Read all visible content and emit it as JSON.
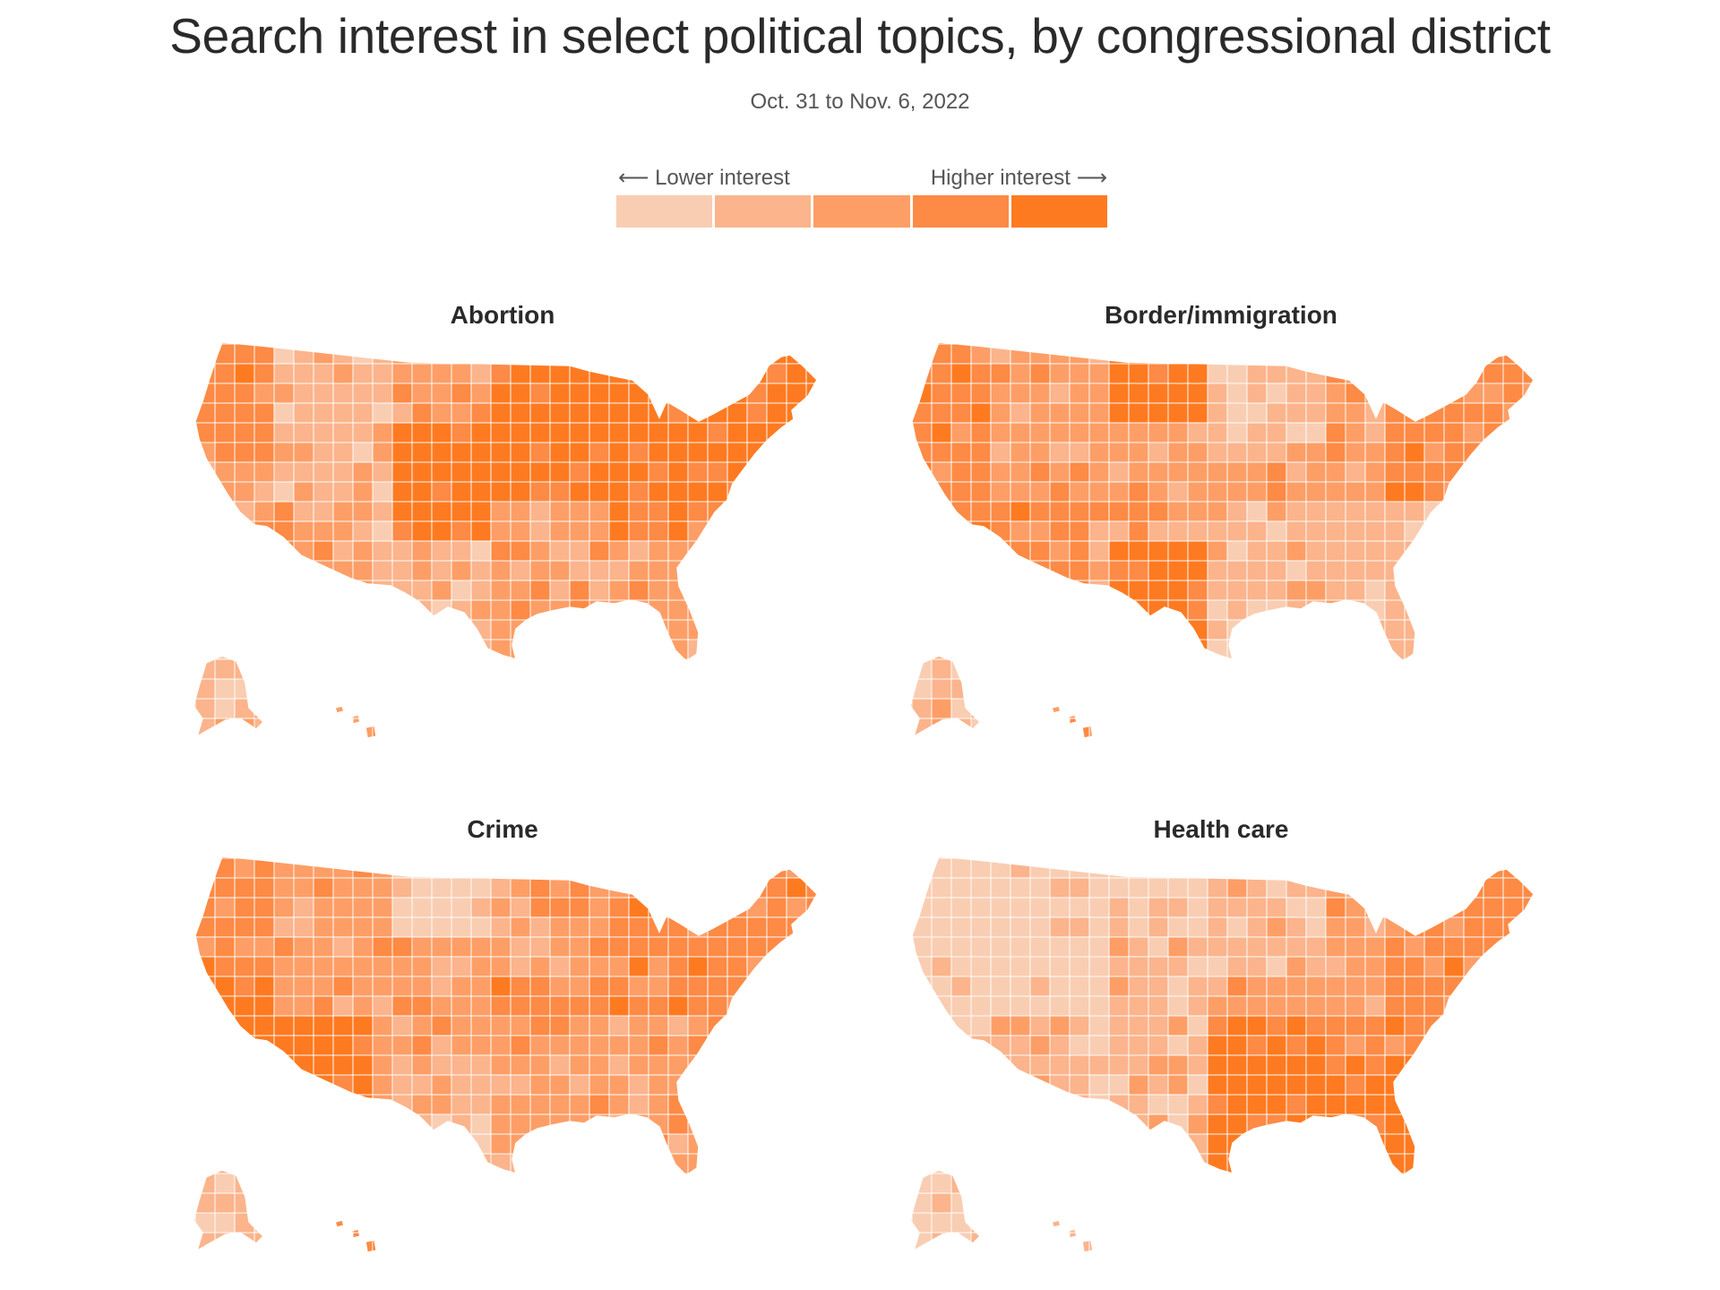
{
  "title": "Search interest in select political topics, by congressional district",
  "subtitle": "Oct. 31 to Nov. 6, 2022",
  "legend": {
    "low_label": "⟵ Lower interest",
    "high_label": "Higher interest ⟶",
    "colors": [
      "#f9cdb2",
      "#fbb48c",
      "#fd9e66",
      "#fd8a45",
      "#fe7a21"
    ]
  },
  "chart_data": {
    "type": "choropleth",
    "geography": "U.S. congressional districts",
    "scale_levels": 5,
    "panels": [
      {
        "title": "Abortion",
        "regional_interest_levels": {
          "pacific_nw": 3,
          "california": 2,
          "mountain_west": 1,
          "southwest": 2,
          "northern_plains": 2,
          "central_plains": 4,
          "upper_midwest": 4,
          "great_lakes": 4,
          "appalachia": 3,
          "northeast": 4,
          "southeast": 2,
          "texas": 1,
          "alaska": 1,
          "hawaii": 2
        }
      },
      {
        "title": "Border/immigration",
        "regional_interest_levels": {
          "pacific_nw": 3,
          "california": 3,
          "mountain_west": 2,
          "southwest": 3,
          "northern_plains": 4,
          "central_plains": 2,
          "upper_midwest": 1,
          "great_lakes": 2,
          "appalachia": 1,
          "northeast": 3,
          "southeast": 1,
          "texas": 4,
          "alaska": 1,
          "hawaii": 2
        }
      },
      {
        "title": "Crime",
        "regional_interest_levels": {
          "pacific_nw": 3,
          "california": 4,
          "mountain_west": 2,
          "southwest": 4,
          "northern_plains": 0,
          "central_plains": 2,
          "upper_midwest": 2,
          "great_lakes": 3,
          "appalachia": 2,
          "northeast": 3,
          "southeast": 2,
          "texas": 1,
          "alaska": 1,
          "hawaii": 3
        }
      },
      {
        "title": "Health care",
        "regional_interest_levels": {
          "pacific_nw": 0,
          "california": 0,
          "mountain_west": 0,
          "southwest": 1,
          "northern_plains": 0,
          "central_plains": 1,
          "upper_midwest": 1,
          "great_lakes": 2,
          "appalachia": 3,
          "northeast": 3,
          "southeast": 4,
          "texas": 1,
          "alaska": 0,
          "hawaii": 1
        }
      }
    ]
  }
}
